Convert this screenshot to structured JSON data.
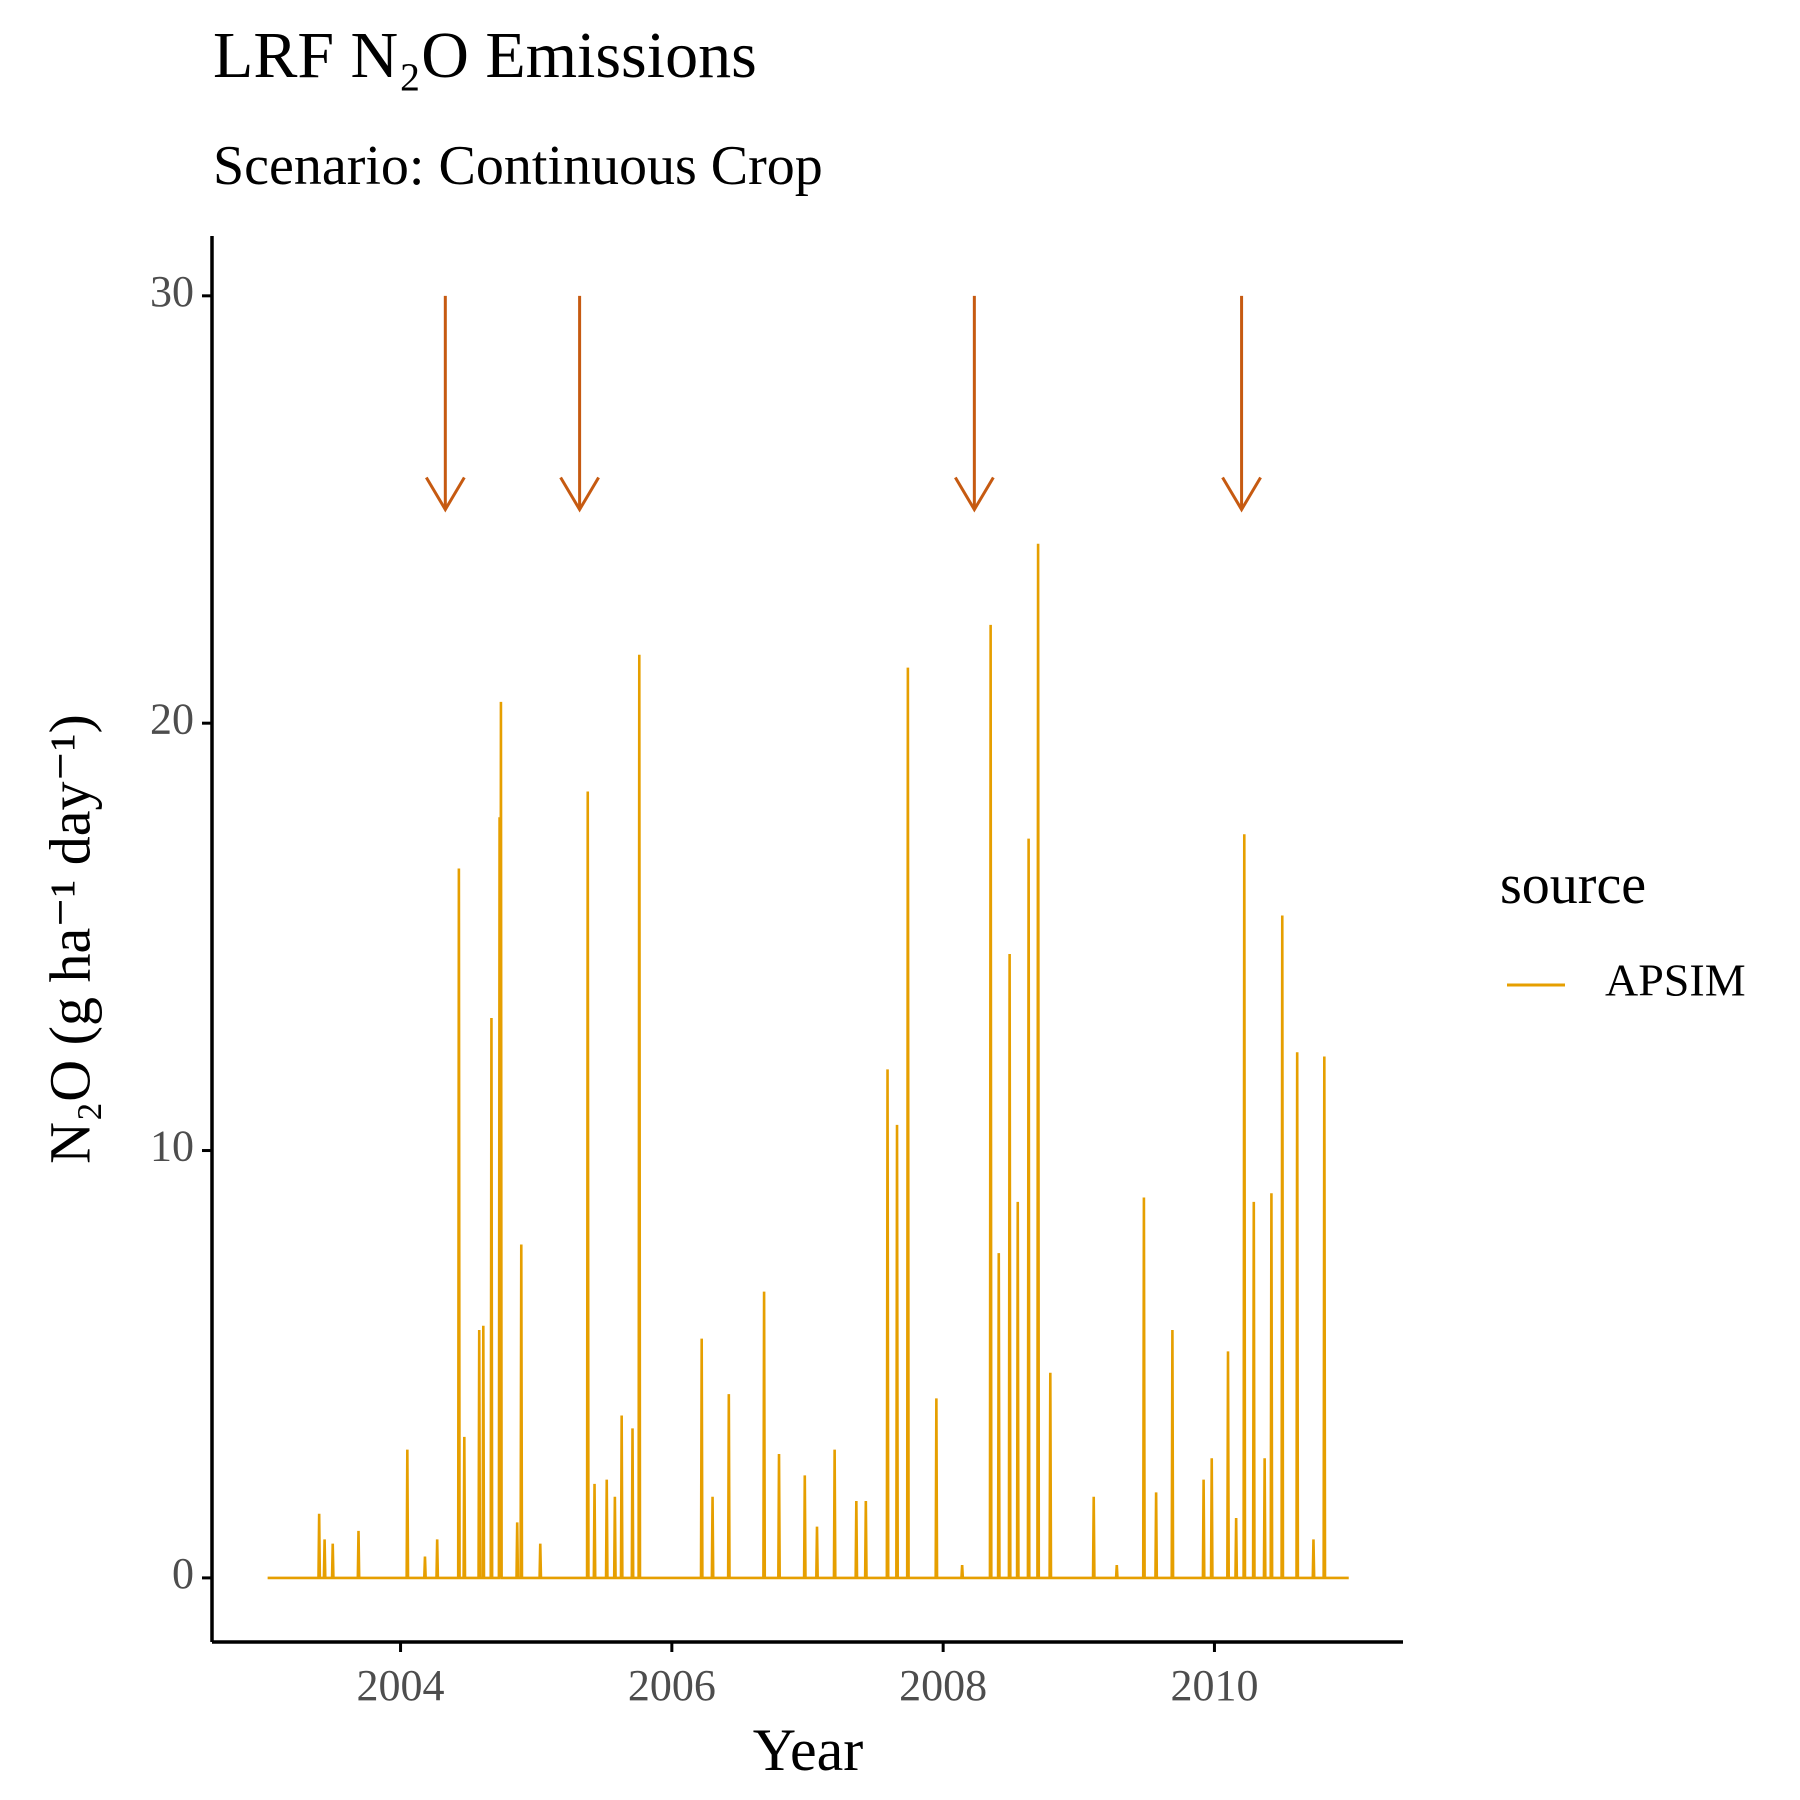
{
  "chart_data": {
    "type": "line",
    "title": "LRF N₂O Emissions",
    "subtitle": "Scenario: Continuous Crop",
    "x_label": "Year",
    "y_label": "N₂O (g ha⁻¹ day⁻¹)",
    "legend_title": "source",
    "legend_position": "right",
    "grid": false,
    "xlim": [
      2002.61,
      2011.39
    ],
    "ylim": [
      -1.5,
      31.4
    ],
    "xticks": [
      2004,
      2006,
      2008,
      2010
    ],
    "yticks": [
      0,
      10,
      20,
      30
    ],
    "x": [
      2003.02,
      2003.395,
      2003.4,
      2003.405,
      2003.435,
      2003.44,
      2003.445,
      2003.495,
      2003.5,
      2003.505,
      2003.685,
      2003.69,
      2003.695,
      2004.045,
      2004.05,
      2004.055,
      2004.175,
      2004.18,
      2004.185,
      2004.265,
      2004.27,
      2004.275,
      2004.425,
      2004.43,
      2004.435,
      2004.465,
      2004.47,
      2004.475,
      2004.575,
      2004.58,
      2004.585,
      2004.605,
      2004.61,
      2004.615,
      2004.665,
      2004.67,
      2004.675,
      2004.725,
      2004.73,
      2004.735,
      2004.735,
      2004.74,
      2004.745,
      2004.855,
      2004.86,
      2004.865,
      2004.885,
      2004.89,
      2004.895,
      2005.025,
      2005.03,
      2005.035,
      2005.375,
      2005.38,
      2005.385,
      2005.425,
      2005.43,
      2005.435,
      2005.515,
      2005.52,
      2005.525,
      2005.575,
      2005.58,
      2005.585,
      2005.625,
      2005.63,
      2005.635,
      2005.705,
      2005.71,
      2005.715,
      2005.755,
      2005.76,
      2005.765,
      2006.215,
      2006.22,
      2006.225,
      2006.295,
      2006.3,
      2006.305,
      2006.415,
      2006.42,
      2006.425,
      2006.675,
      2006.68,
      2006.685,
      2006.785,
      2006.79,
      2006.795,
      2006.975,
      2006.98,
      2006.985,
      2007.065,
      2007.07,
      2007.075,
      2007.195,
      2007.2,
      2007.205,
      2007.355,
      2007.36,
      2007.365,
      2007.425,
      2007.43,
      2007.435,
      2007.585,
      2007.59,
      2007.595,
      2007.655,
      2007.66,
      2007.665,
      2007.735,
      2007.74,
      2007.745,
      2007.945,
      2007.95,
      2007.955,
      2008.135,
      2008.14,
      2008.145,
      2008.345,
      2008.35,
      2008.355,
      2008.405,
      2008.41,
      2008.415,
      2008.485,
      2008.49,
      2008.495,
      2008.545,
      2008.55,
      2008.555,
      2008.625,
      2008.63,
      2008.635,
      2008.695,
      2008.7,
      2008.705,
      2008.785,
      2008.79,
      2008.795,
      2009.105,
      2009.11,
      2009.115,
      2009.275,
      2009.28,
      2009.285,
      2009.475,
      2009.48,
      2009.485,
      2009.565,
      2009.57,
      2009.575,
      2009.685,
      2009.69,
      2009.695,
      2009.915,
      2009.92,
      2009.925,
      2009.975,
      2009.98,
      2009.985,
      2010.095,
      2010.1,
      2010.105,
      2010.155,
      2010.16,
      2010.165,
      2010.215,
      2010.22,
      2010.225,
      2010.285,
      2010.29,
      2010.295,
      2010.365,
      2010.37,
      2010.375,
      2010.415,
      2010.42,
      2010.425,
      2010.495,
      2010.5,
      2010.505,
      2010.605,
      2010.61,
      2010.615,
      2010.725,
      2010.73,
      2010.735,
      2010.805,
      2010.81,
      2010.815,
      2010.99
    ],
    "series": [
      {
        "name": "APSIM",
        "color": "#e69f00",
        "values": [
          0,
          0,
          1.5,
          0,
          0,
          0.9,
          0,
          0,
          0.8,
          0,
          0,
          1.1,
          0,
          0,
          3.0,
          0,
          0,
          0.5,
          0,
          0,
          0.9,
          0,
          0,
          16.6,
          0,
          0,
          3.3,
          0,
          0,
          5.8,
          0,
          0,
          5.9,
          0,
          0,
          13.1,
          0,
          0,
          17.8,
          0,
          0,
          20.5,
          0,
          0,
          1.3,
          0,
          0,
          7.8,
          0,
          0,
          0.8,
          0,
          0,
          18.4,
          0,
          0,
          2.2,
          0,
          0,
          2.3,
          0,
          0,
          1.9,
          0,
          0,
          3.8,
          0,
          0,
          3.5,
          0,
          0,
          21.6,
          0,
          0,
          5.6,
          0,
          0,
          1.9,
          0,
          0,
          4.3,
          0,
          0,
          6.7,
          0,
          0,
          2.9,
          0,
          0,
          2.4,
          0,
          0,
          1.2,
          0,
          0,
          3.0,
          0,
          0,
          1.8,
          0,
          0,
          1.8,
          0,
          0,
          11.9,
          0,
          0,
          10.6,
          0,
          0,
          21.3,
          0,
          0,
          4.2,
          0,
          0,
          0.3,
          0,
          0,
          22.3,
          0,
          0,
          7.6,
          0,
          0,
          14.6,
          0,
          0,
          8.8,
          0,
          0,
          17.3,
          0,
          0,
          24.2,
          0,
          0,
          4.8,
          0,
          0,
          1.9,
          0,
          0,
          0.3,
          0,
          0,
          8.9,
          0,
          0,
          2.0,
          0,
          0,
          5.8,
          0,
          0,
          2.3,
          0,
          0,
          2.8,
          0,
          0,
          5.3,
          0,
          0,
          1.4,
          0,
          0,
          17.4,
          0,
          0,
          8.8,
          0,
          0,
          2.8,
          0,
          0,
          9.0,
          0,
          0,
          15.5,
          0,
          0,
          12.3,
          0,
          0,
          0.9,
          0,
          0,
          12.2,
          0,
          0
        ]
      }
    ],
    "annotations": {
      "color": "#c65a11",
      "arrows": [
        {
          "x": 2004.33,
          "y_start": 30,
          "y_end": 25
        },
        {
          "x": 2005.32,
          "y_start": 30,
          "y_end": 25
        },
        {
          "x": 2008.23,
          "y_start": 30,
          "y_end": 25
        },
        {
          "x": 2010.2,
          "y_start": 30,
          "y_end": 25
        }
      ]
    }
  }
}
